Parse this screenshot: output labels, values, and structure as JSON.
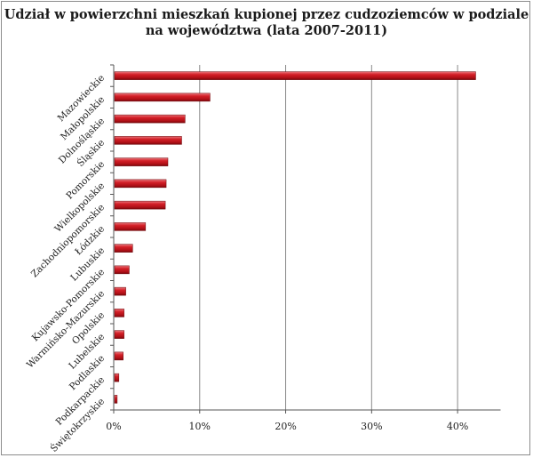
{
  "chart_data": {
    "type": "bar",
    "orientation": "horizontal",
    "title_lines": [
      "Udział w powierzchni mieszkań kupionej przez cudzoziemców w podziale",
      "na województwa (lata 2007-2011)"
    ],
    "categories": [
      "Mazowieckie",
      "Małopolskie",
      "Dolnośląskie",
      "Śląskie",
      "Pomorskie",
      "Wielkopolskie",
      "Zachodniopomorskie",
      "Łódzkie",
      "Lubuskie",
      "Kujawsko-Pomorskie",
      "Warmińsko-Mazurskie",
      "Opolskie",
      "Lubelskie",
      "Podlaskie",
      "Podkarpackie",
      "Świętokrzyskie"
    ],
    "values": [
      42.0,
      11.1,
      8.2,
      7.8,
      6.2,
      6.0,
      5.9,
      3.6,
      2.1,
      1.7,
      1.3,
      1.1,
      1.1,
      1.0,
      0.5,
      0.3
    ],
    "xlim": [
      0,
      45
    ],
    "x_ticks": [
      "0%",
      "10%",
      "20%",
      "30%",
      "40%"
    ],
    "x_tick_values": [
      0,
      10,
      20,
      30,
      40
    ],
    "grid": "vertical",
    "legend": "none",
    "bar_color": "#c0141b"
  }
}
